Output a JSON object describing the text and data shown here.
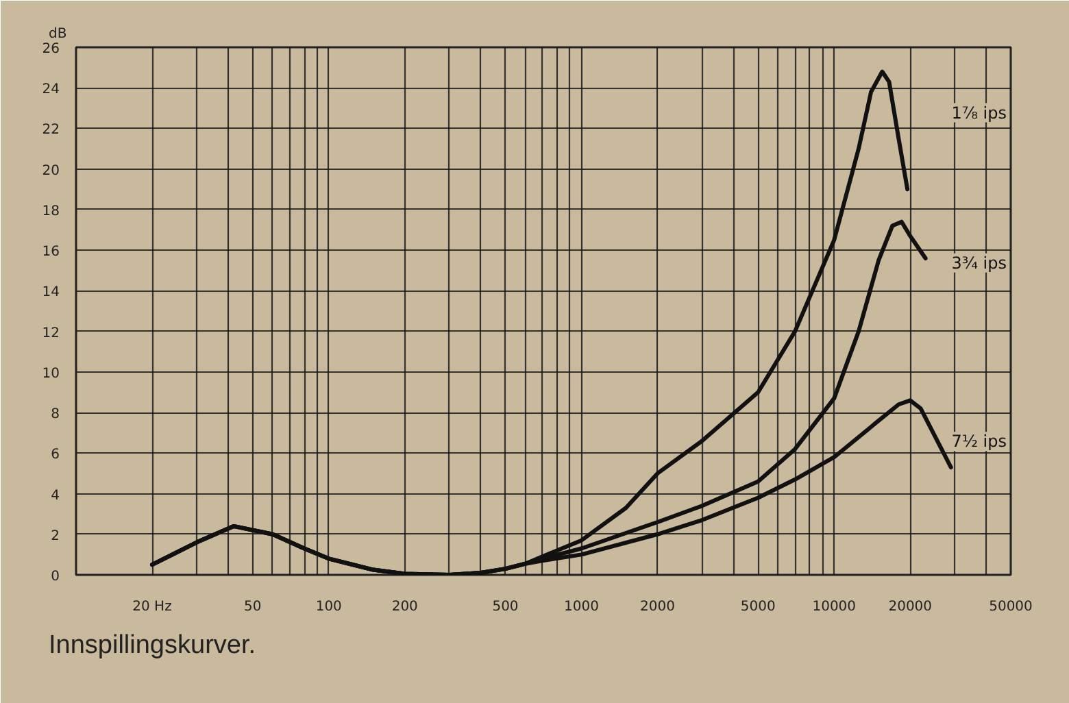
{
  "chart_data": {
    "type": "line",
    "ylabel": "dB",
    "annotations": [
      "Innspillingskurver."
    ],
    "log": "x",
    "grid": true,
    "legend": false,
    "marker": "none",
    "line_style": "solid",
    "xlim": [
      10,
      50000
    ],
    "ylim": [
      0,
      26
    ],
    "xticks": [
      {
        "value": 20,
        "label": "20 Hz"
      },
      {
        "value": 30,
        "label": null
      },
      {
        "value": 40,
        "label": null
      },
      50,
      {
        "value": 60,
        "label": null
      },
      {
        "value": 70,
        "label": null
      },
      {
        "value": 80,
        "label": null
      },
      {
        "value": 90,
        "label": null
      },
      100,
      200,
      {
        "value": 300,
        "label": null
      },
      {
        "value": 400,
        "label": null
      },
      500,
      {
        "value": 600,
        "label": null
      },
      {
        "value": 700,
        "label": null
      },
      {
        "value": 800,
        "label": null
      },
      {
        "value": 900,
        "label": null
      },
      1000,
      2000,
      {
        "value": 3000,
        "label": null
      },
      {
        "value": 4000,
        "label": null
      },
      5000,
      {
        "value": 6000,
        "label": null
      },
      {
        "value": 7000,
        "label": null
      },
      {
        "value": 8000,
        "label": null
      },
      {
        "value": 9000,
        "label": null
      },
      10000,
      20000,
      {
        "value": 30000,
        "label": null
      },
      {
        "value": 40000,
        "label": null
      },
      50000
    ],
    "yticks": [
      0,
      2,
      4,
      6,
      8,
      10,
      12,
      14,
      16,
      18,
      20,
      22,
      24,
      26
    ],
    "series": [
      {
        "name": "1⅞ ips",
        "color": "#111111",
        "x": [
          20,
          30,
          42,
          60,
          80,
          100,
          150,
          200,
          300,
          400,
          500,
          600,
          700,
          1000,
          1500,
          2000,
          3000,
          5000,
          7000,
          10000,
          12500,
          14000,
          15500,
          16500,
          18000,
          19500
        ],
        "values": [
          0.5,
          1.6,
          2.4,
          2.0,
          1.3,
          0.8,
          0.25,
          0.05,
          0.0,
          0.1,
          0.3,
          0.55,
          0.9,
          1.7,
          3.3,
          5.0,
          6.6,
          9.0,
          12.0,
          16.5,
          21.0,
          23.8,
          24.8,
          24.3,
          21.5,
          19.0
        ]
      },
      {
        "name": "3¾ ips",
        "color": "#111111",
        "x": [
          20,
          30,
          42,
          60,
          80,
          100,
          150,
          200,
          300,
          400,
          500,
          600,
          700,
          1000,
          2000,
          3000,
          5000,
          7000,
          10000,
          12500,
          15000,
          17000,
          18500,
          20000,
          23000
        ],
        "values": [
          0.5,
          1.6,
          2.4,
          2.0,
          1.3,
          0.8,
          0.25,
          0.05,
          0.0,
          0.1,
          0.3,
          0.55,
          0.8,
          1.3,
          2.6,
          3.4,
          4.6,
          6.2,
          8.7,
          12.0,
          15.5,
          17.2,
          17.4,
          16.7,
          15.6
        ]
      },
      {
        "name": "7½ ips",
        "color": "#111111",
        "x": [
          20,
          30,
          42,
          60,
          80,
          100,
          150,
          200,
          300,
          400,
          500,
          600,
          700,
          1000,
          2000,
          3000,
          5000,
          7000,
          10000,
          15000,
          18000,
          20000,
          22000,
          29000
        ],
        "values": [
          0.5,
          1.6,
          2.4,
          2.0,
          1.3,
          0.8,
          0.25,
          0.05,
          0.0,
          0.1,
          0.3,
          0.55,
          0.7,
          1.0,
          2.0,
          2.7,
          3.8,
          4.7,
          5.8,
          7.6,
          8.4,
          8.6,
          8.2,
          5.3
        ]
      }
    ]
  }
}
